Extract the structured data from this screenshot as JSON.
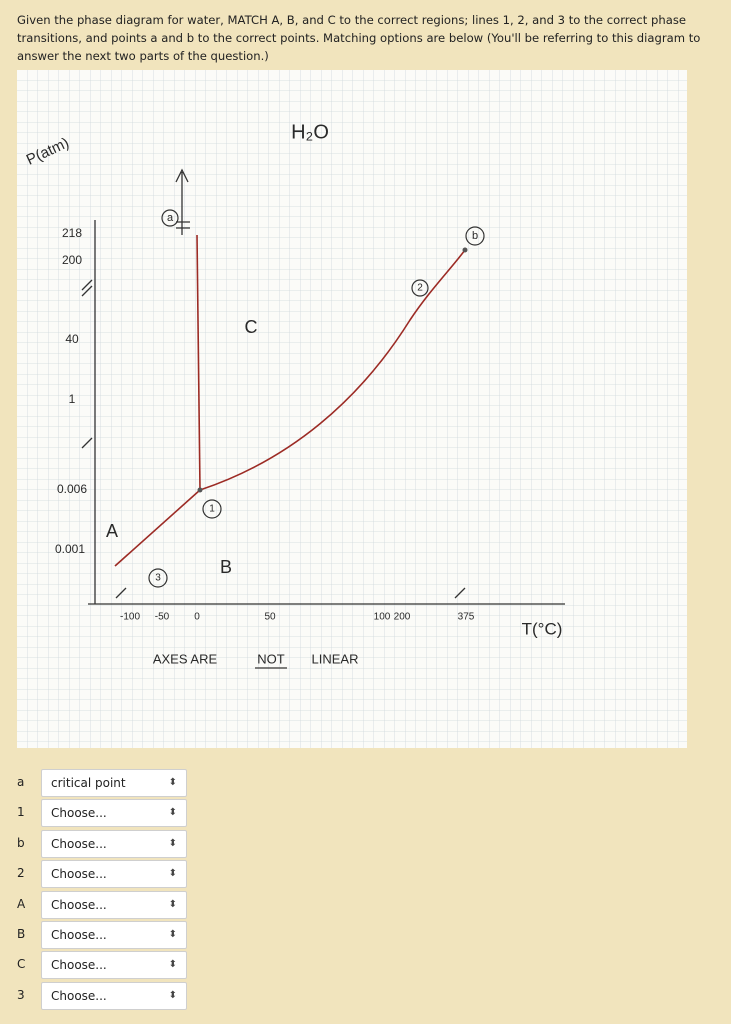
{
  "question": {
    "text": "Given the phase diagram for water, MATCH A, B, and C to the correct regions; lines 1, 2, and 3 to the correct phase transitions, and points a and b to the correct points. Matching options are below (You'll be referring to this diagram to answer the next two parts of the question.)"
  },
  "diagram": {
    "y_axis_label": "P(atm)",
    "title": "H₂O",
    "y_labels": [
      "218",
      "200",
      "40",
      "1",
      "0.006",
      "0.001"
    ],
    "x_labels": [
      "-100",
      "-50",
      "0",
      "50",
      "100",
      "200",
      "375"
    ],
    "x_axis_label": "T(°C)",
    "note": [
      "AXES ARE",
      "NOT",
      "LINEAR"
    ],
    "regions": [
      "A",
      "B",
      "C"
    ],
    "lines": [
      "1",
      "2",
      "3"
    ],
    "points": [
      "a",
      "b"
    ]
  },
  "matches": [
    {
      "label": "a",
      "selected": "critical point"
    },
    {
      "label": "1",
      "selected": "Choose..."
    },
    {
      "label": "b",
      "selected": "Choose..."
    },
    {
      "label": "2",
      "selected": "Choose..."
    },
    {
      "label": "A",
      "selected": "Choose..."
    },
    {
      "label": "B",
      "selected": "Choose..."
    },
    {
      "label": "C",
      "selected": "Choose..."
    },
    {
      "label": "3",
      "selected": "Choose..."
    }
  ]
}
